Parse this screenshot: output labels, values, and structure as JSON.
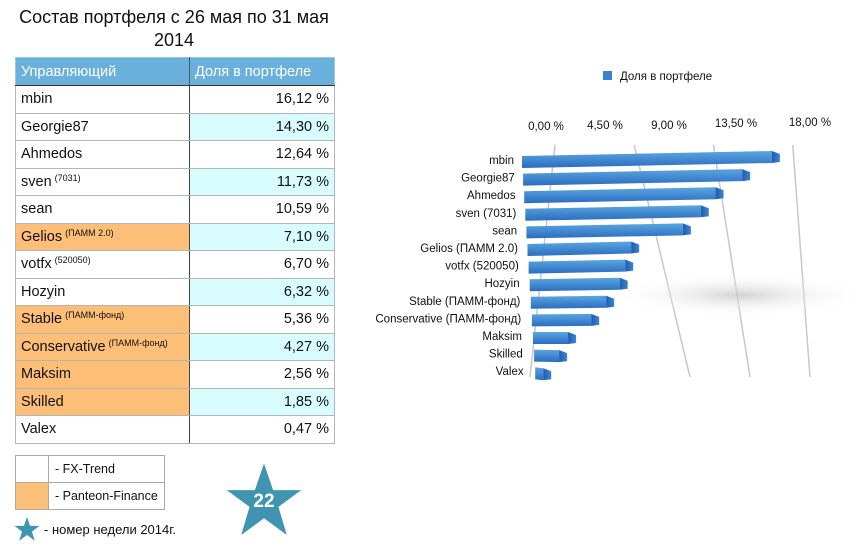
{
  "page": {
    "title": "Состав портфеля с 26 мая по 31 мая 2014"
  },
  "table": {
    "headers": [
      "Управляющий",
      "Доля в портфеле"
    ],
    "rows": [
      {
        "name": "mbin",
        "note": "",
        "value": "16,12 %",
        "company": "FX-Trend",
        "highlight": false
      },
      {
        "name": "Georgie87",
        "note": "",
        "value": "14,30 %",
        "company": "FX-Trend",
        "highlight": true
      },
      {
        "name": "Ahmedos",
        "note": "",
        "value": "12,64 %",
        "company": "FX-Trend",
        "highlight": false
      },
      {
        "name": "sven",
        "note": "(7031)",
        "value": "11,73 %",
        "company": "FX-Trend",
        "highlight": true
      },
      {
        "name": "sean",
        "note": "",
        "value": "10,59 %",
        "company": "FX-Trend",
        "highlight": false
      },
      {
        "name": "Gelios",
        "note": "(ПАММ 2.0)",
        "value": "7,10 %",
        "company": "Panteon-Finance",
        "highlight": true
      },
      {
        "name": "votfx",
        "note": "(520050)",
        "value": "6,70 %",
        "company": "FX-Trend",
        "highlight": false
      },
      {
        "name": "Hozyin",
        "note": "",
        "value": "6,32 %",
        "company": "FX-Trend",
        "highlight": true
      },
      {
        "name": "Stable",
        "note": "(ПАММ-фонд)",
        "value": "5,36 %",
        "company": "Panteon-Finance",
        "highlight": false
      },
      {
        "name": "Conservative",
        "note": "(ПАММ-фонд)",
        "value": "4,27 %",
        "company": "Panteon-Finance",
        "highlight": true
      },
      {
        "name": "Maksim",
        "note": "",
        "value": "2,56 %",
        "company": "Panteon-Finance",
        "highlight": false
      },
      {
        "name": "Skilled",
        "note": "",
        "value": "1,85 %",
        "company": "Panteon-Finance",
        "highlight": true
      },
      {
        "name": "Valex",
        "note": "",
        "value": "0,47 %",
        "company": "FX-Trend",
        "highlight": false
      }
    ]
  },
  "legend": {
    "items": [
      {
        "label": "- FX-Trend",
        "color": "#ffffff"
      },
      {
        "label": "- Panteon-Finance",
        "color": "#fdbe78"
      }
    ],
    "star_label": "- номер недели 2014г."
  },
  "week_badge": {
    "number": "22",
    "color": "#3f95b1"
  },
  "colors": {
    "header_bg": "#6ab0dd",
    "panteon": "#fdbe78",
    "highlight_cell": "#d8fbfd",
    "bar": "#2f6fc4"
  },
  "chart_data": {
    "type": "bar",
    "orientation": "horizontal",
    "style": "3d",
    "title": "",
    "legend": {
      "entries": [
        "Доля в портфеле"
      ],
      "placement": "top"
    },
    "categories": [
      "mbin",
      "Georgie87",
      "Ahmedos",
      "sven (7031)",
      "sean",
      "Gelios (ПАММ 2.0)",
      "votfx (520050)",
      "Hozyin",
      "Stable (ПАММ-фонд)",
      "Conservative (ПАММ-фонд)",
      "Maksim",
      "Skilled",
      "Valex"
    ],
    "series": [
      {
        "name": "Доля в портфеле",
        "values": [
          16.12,
          14.3,
          12.64,
          11.73,
          10.59,
          7.1,
          6.7,
          6.32,
          5.36,
          4.27,
          2.56,
          1.85,
          0.47
        ]
      }
    ],
    "xlim": [
      0,
      18
    ],
    "xticks": [
      0,
      4.5,
      9,
      13.5,
      18
    ],
    "xtick_labels": [
      "0,00 %",
      "4,50 %",
      "9,00 %",
      "13,50 %",
      "18,00 %"
    ],
    "xlabel": "",
    "ylabel": "",
    "grid": true
  }
}
